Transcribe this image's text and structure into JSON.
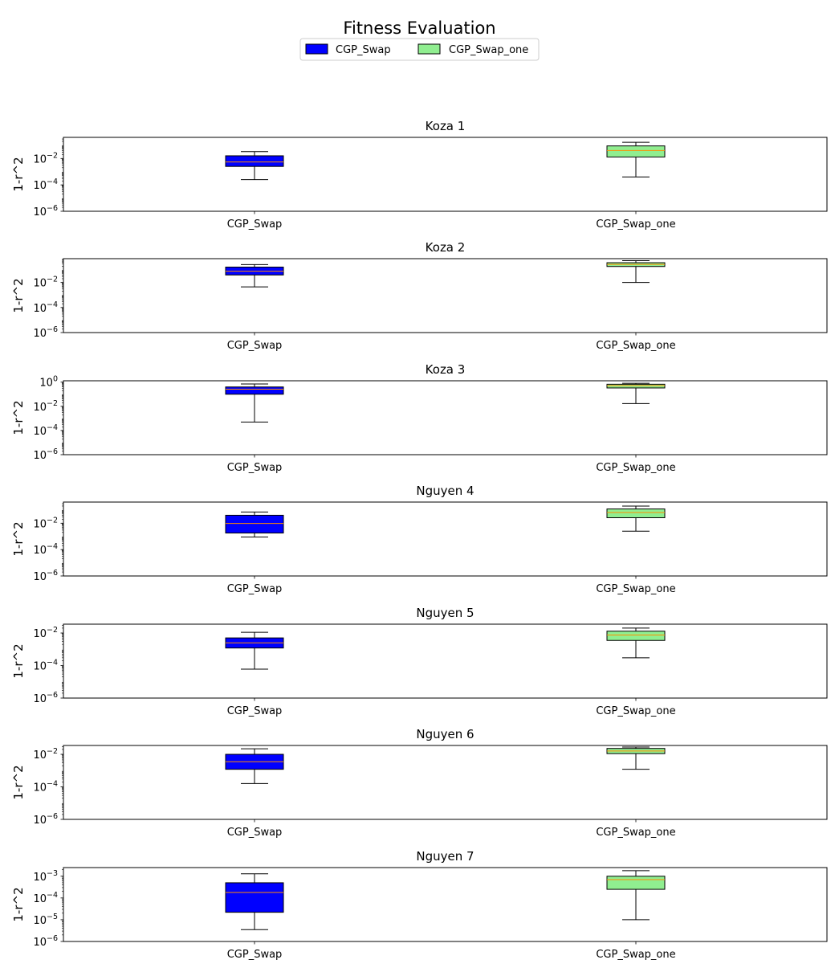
{
  "title": "Fitness Evaluation",
  "legend": {
    "placement": "top-center",
    "entries": [
      {
        "label": "CGP_Swap",
        "color": "#0000ff"
      },
      {
        "label": "CGP_Swap_one",
        "color": "#90ee90"
      }
    ]
  },
  "colors": {
    "median": "#ff8c00",
    "edge": "#000000"
  },
  "chart_data": [
    {
      "type": "box",
      "title": "Koza 1",
      "ylabel": "1-r^2",
      "yscale": "log",
      "ylim": [
        1e-06,
        0.4
      ],
      "ytick_exponents": [
        -6,
        -4,
        -2
      ],
      "categories": [
        "CGP_Swap",
        "CGP_Swap_one"
      ],
      "boxes": [
        {
          "whislo": 0.00025,
          "q1": 0.0025,
          "med": 0.0055,
          "q3": 0.016,
          "whishi": 0.033
        },
        {
          "whislo": 0.0004,
          "q1": 0.013,
          "med": 0.04,
          "q3": 0.09,
          "whishi": 0.17
        }
      ]
    },
    {
      "type": "box",
      "title": "Koza 2",
      "ylabel": "1-r^2",
      "yscale": "log",
      "ylim": [
        1e-06,
        0.8
      ],
      "ytick_exponents": [
        -6,
        -4,
        -2
      ],
      "categories": [
        "CGP_Swap",
        "CGP_Swap_one"
      ],
      "boxes": [
        {
          "whislo": 0.0045,
          "q1": 0.04,
          "med": 0.08,
          "q3": 0.17,
          "whishi": 0.27
        },
        {
          "whislo": 0.01,
          "q1": 0.19,
          "med": 0.28,
          "q3": 0.38,
          "whishi": 0.55
        }
      ]
    },
    {
      "type": "box",
      "title": "Koza 3",
      "ylabel": "1-r^2",
      "yscale": "log",
      "ylim": [
        1e-06,
        1.3
      ],
      "ytick_exponents": [
        -6,
        -4,
        -2,
        0
      ],
      "categories": [
        "CGP_Swap",
        "CGP_Swap_one"
      ],
      "boxes": [
        {
          "whislo": 0.0005,
          "q1": 0.1,
          "med": 0.26,
          "q3": 0.4,
          "whishi": 0.7
        },
        {
          "whislo": 0.017,
          "q1": 0.33,
          "med": 0.52,
          "q3": 0.67,
          "whishi": 0.8
        }
      ]
    },
    {
      "type": "box",
      "title": "Nguyen 4",
      "ylabel": "1-r^2",
      "yscale": "log",
      "ylim": [
        1e-06,
        0.4
      ],
      "ytick_exponents": [
        -6,
        -4,
        -2
      ],
      "categories": [
        "CGP_Swap",
        "CGP_Swap_one"
      ],
      "boxes": [
        {
          "whislo": 0.0009,
          "q1": 0.0018,
          "med": 0.0095,
          "q3": 0.04,
          "whishi": 0.07
        },
        {
          "whislo": 0.0025,
          "q1": 0.026,
          "med": 0.065,
          "q3": 0.12,
          "whishi": 0.2
        }
      ]
    },
    {
      "type": "box",
      "title": "Nguyen 5",
      "ylabel": "1-r^2",
      "yscale": "log",
      "ylim": [
        1e-06,
        0.035
      ],
      "ytick_exponents": [
        -6,
        -4,
        -2
      ],
      "categories": [
        "CGP_Swap",
        "CGP_Swap_one"
      ],
      "boxes": [
        {
          "whislo": 6e-05,
          "q1": 0.0012,
          "med": 0.0025,
          "q3": 0.005,
          "whishi": 0.011
        },
        {
          "whislo": 0.0003,
          "q1": 0.0035,
          "med": 0.0075,
          "q3": 0.013,
          "whishi": 0.02
        }
      ]
    },
    {
      "type": "box",
      "title": "Nguyen 6",
      "ylabel": "1-r^2",
      "yscale": "log",
      "ylim": [
        1e-06,
        0.035
      ],
      "ytick_exponents": [
        -6,
        -4,
        -2
      ],
      "categories": [
        "CGP_Swap",
        "CGP_Swap_one"
      ],
      "boxes": [
        {
          "whislo": 0.00016,
          "q1": 0.0012,
          "med": 0.0035,
          "q3": 0.01,
          "whishi": 0.022
        },
        {
          "whislo": 0.0012,
          "q1": 0.011,
          "med": 0.016,
          "q3": 0.023,
          "whishi": 0.028
        }
      ]
    },
    {
      "type": "box",
      "title": "Nguyen 7",
      "ylabel": "1-r^2",
      "yscale": "log",
      "ylim": [
        1e-06,
        0.0025
      ],
      "ytick_exponents": [
        -6,
        -5,
        -4,
        -3
      ],
      "categories": [
        "CGP_Swap",
        "CGP_Swap_one"
      ],
      "boxes": [
        {
          "whislo": 3.5e-06,
          "q1": 2.2e-05,
          "med": 0.00018,
          "q3": 0.0005,
          "whishi": 0.0013
        },
        {
          "whislo": 1e-05,
          "q1": 0.00025,
          "med": 0.0007,
          "q3": 0.001,
          "whishi": 0.0018
        }
      ]
    }
  ]
}
